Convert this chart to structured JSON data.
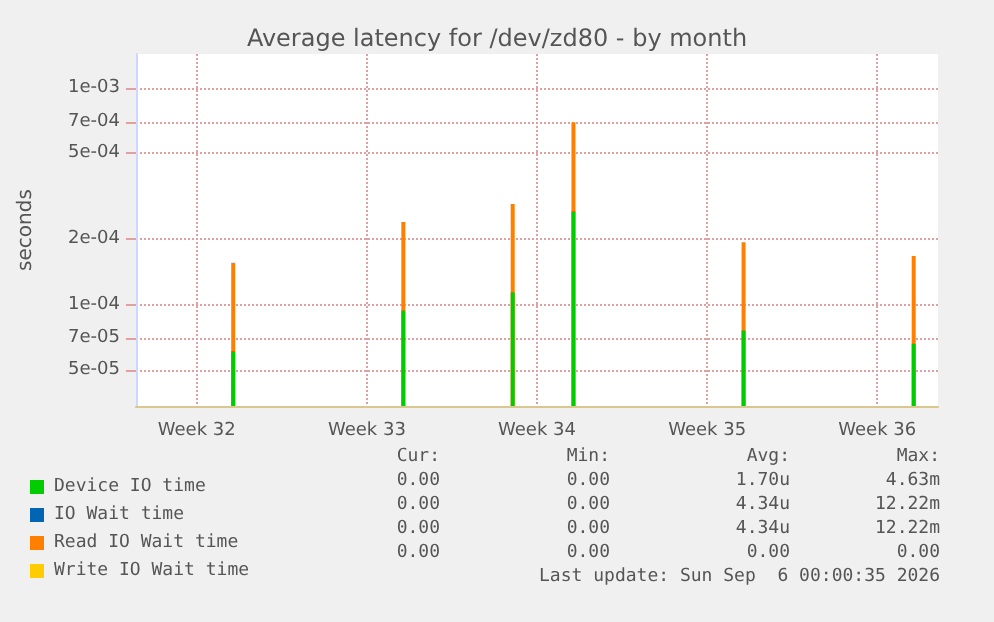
{
  "chart_data": {
    "type": "bar",
    "title": "Average latency for /dev/zd80 - by month",
    "ylabel": "seconds",
    "categories": [
      null,
      null,
      null,
      null,
      null,
      "Week 32",
      null,
      null,
      null,
      null,
      null,
      null,
      null,
      null,
      null,
      null,
      null,
      null,
      null,
      "Week 33",
      null,
      null,
      null,
      null,
      null,
      null,
      null,
      null,
      null,
      null,
      null,
      null,
      null,
      "Week 34",
      null,
      null,
      null,
      null,
      null,
      null,
      null,
      null,
      null,
      null,
      null,
      null,
      null,
      "Week 35",
      null,
      null,
      null,
      null,
      null,
      null,
      null,
      null,
      null,
      null,
      null,
      null,
      null,
      "Week 36",
      null,
      null,
      null,
      null,
      null
    ],
    "ylim": [
      3.4e-05,
      0.00144
    ],
    "yticks": [
      {
        "value": 5e-05,
        "label": "5e-05"
      },
      {
        "value": 7e-05,
        "label": "7e-05"
      },
      {
        "value": 0.0001,
        "label": "1e-04"
      },
      {
        "value": 0.0002,
        "label": "2e-04"
      },
      {
        "value": 0.0005,
        "label": "5e-04"
      },
      {
        "value": 0.0007,
        "label": "7e-04"
      },
      {
        "value": 0.001,
        "label": "1e-03"
      }
    ],
    "log": "y",
    "grid": true,
    "legend": "bottom",
    "series": [
      {
        "name": "Device IO time",
        "color": "#00cc00",
        "values": [
          null,
          null,
          null,
          null,
          null,
          null,
          null,
          null,
          6.1e-05,
          null,
          null,
          null,
          null,
          null,
          null,
          null,
          null,
          null,
          null,
          null,
          null,
          null,
          9.4e-05,
          null,
          null,
          null,
          null,
          null,
          null,
          null,
          null,
          0.000114,
          null,
          null,
          null,
          null,
          0.00027,
          null,
          null,
          null,
          null,
          null,
          null,
          null,
          null,
          null,
          null,
          null,
          null,
          null,
          7.6e-05,
          null,
          null,
          null,
          null,
          null,
          null,
          null,
          null,
          null,
          null,
          null,
          null,
          null,
          6.6e-05,
          null,
          null
        ]
      },
      {
        "name": "IO Wait time",
        "color": "#0066b3",
        "values": [
          null,
          null,
          null,
          null,
          null,
          null,
          null,
          null,
          null,
          null,
          null,
          null,
          null,
          null,
          null,
          null,
          null,
          null,
          null,
          null,
          null,
          null,
          null,
          null,
          null,
          null,
          null,
          null,
          null,
          null,
          null,
          null,
          null,
          null,
          null,
          null,
          null,
          null,
          null,
          null,
          null,
          null,
          null,
          null,
          null,
          null,
          null,
          null,
          null,
          null,
          null,
          null,
          null,
          null,
          null,
          null,
          null,
          null,
          null,
          null,
          null,
          null,
          null,
          null,
          null,
          null,
          null
        ]
      },
      {
        "name": "Read IO Wait time",
        "color": "#ff8000",
        "values": [
          null,
          null,
          null,
          null,
          null,
          null,
          null,
          null,
          0.000156,
          null,
          null,
          null,
          null,
          null,
          null,
          null,
          null,
          null,
          null,
          null,
          null,
          null,
          0.000241,
          null,
          null,
          null,
          null,
          null,
          null,
          null,
          null,
          0.000292,
          null,
          null,
          null,
          null,
          0.000697,
          null,
          null,
          null,
          null,
          null,
          null,
          null,
          null,
          null,
          null,
          null,
          null,
          null,
          0.000194,
          null,
          null,
          null,
          null,
          null,
          null,
          null,
          null,
          null,
          null,
          null,
          null,
          null,
          0.000168,
          null,
          null
        ]
      },
      {
        "name": "Write IO Wait time",
        "color": "#ffcc00",
        "values": [
          null,
          null,
          null,
          null,
          null,
          null,
          null,
          null,
          null,
          null,
          null,
          null,
          null,
          null,
          null,
          null,
          null,
          null,
          null,
          null,
          null,
          null,
          null,
          null,
          null,
          null,
          null,
          null,
          null,
          null,
          null,
          null,
          null,
          null,
          null,
          null,
          null,
          null,
          null,
          null,
          null,
          null,
          null,
          null,
          null,
          null,
          null,
          null,
          null,
          null,
          null,
          null,
          null,
          null,
          null,
          null,
          null,
          null,
          null,
          null,
          null,
          null,
          null,
          null,
          null,
          null,
          null
        ]
      }
    ],
    "annotations": [
      "Cur:",
      "Min:",
      "Avg:",
      "Max:",
      "0.00",
      "0.00",
      "1.70u",
      "4.63m",
      "0.00",
      "0.00",
      "4.34u",
      "12.22m",
      "0.00",
      "0.00",
      "4.34u",
      "12.22m",
      "0.00",
      "0.00",
      "0.00",
      "0.00",
      "Last update: Sun Sep  6 00:00:35 2026"
    ]
  }
}
